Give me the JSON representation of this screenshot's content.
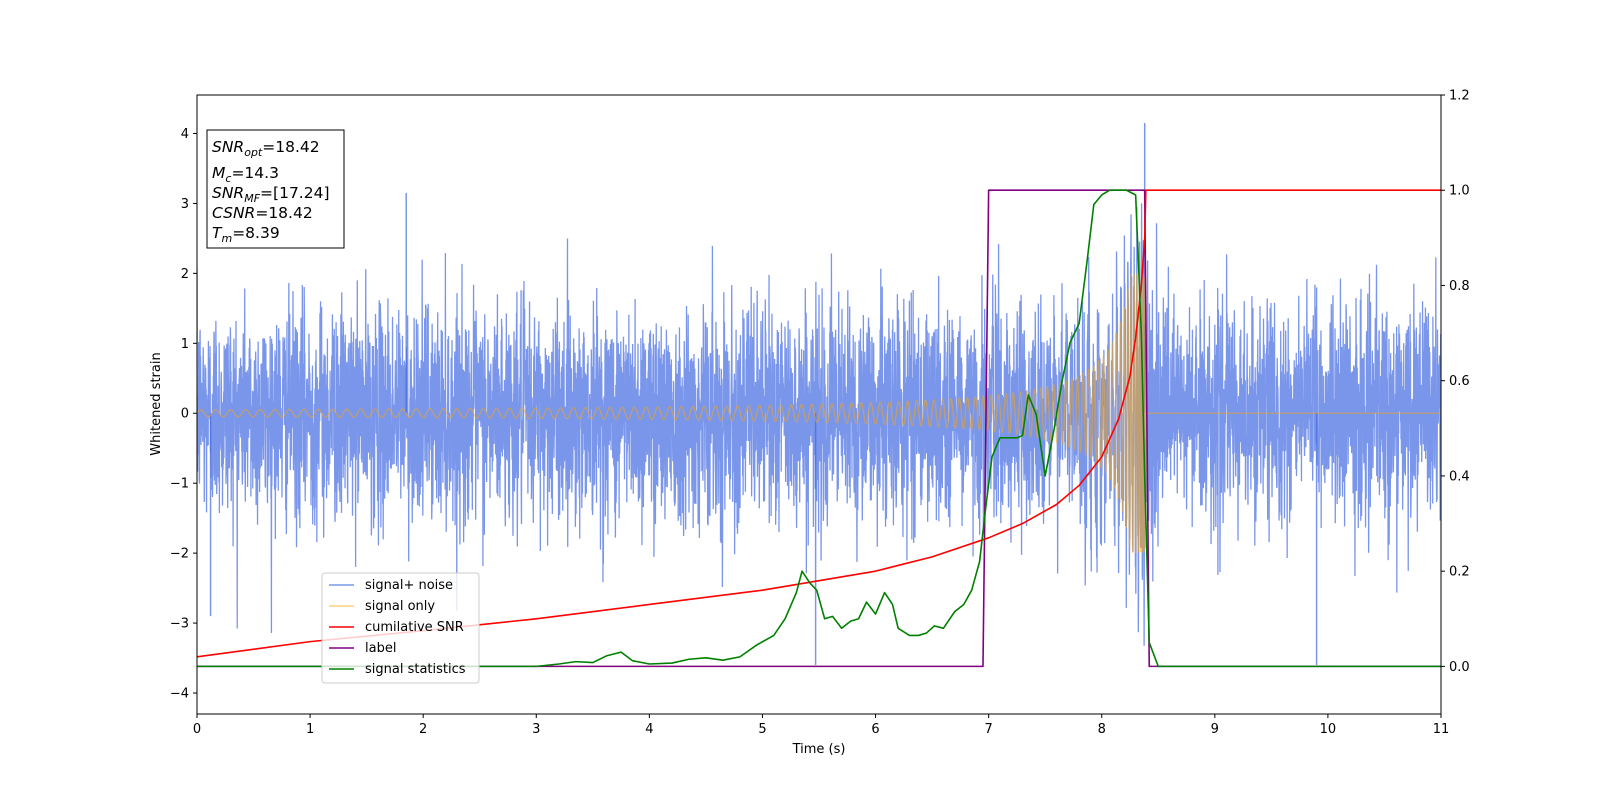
{
  "chart_data": {
    "type": "line",
    "xlabel": "Time (s)",
    "ylabel": "Whitened strain",
    "xlim": [
      0,
      11
    ],
    "ylim": [
      -4.3,
      4.55
    ],
    "y2lim": [
      -0.1,
      1.2
    ],
    "xticks": [
      "0",
      "1",
      "2",
      "3",
      "4",
      "5",
      "6",
      "7",
      "8",
      "9",
      "10",
      "11"
    ],
    "yticks": [
      "−4",
      "−3",
      "−2",
      "−1",
      "0",
      "1",
      "2",
      "3",
      "4"
    ],
    "y2ticks": [
      "0.0",
      "0.2",
      "0.4",
      "0.6",
      "0.8",
      "1.0",
      "1.2"
    ],
    "grid": false,
    "legend_position": "lower-left",
    "annotation_box": {
      "snr_opt": {
        "sym": "SNR",
        "sub": "opt",
        "value": "=18.42"
      },
      "mc": {
        "sym": "M",
        "sub": "c",
        "value": "=14.3"
      },
      "snr_mf": {
        "sym": "SNR",
        "sub": "MF",
        "value": "=[17.24]"
      },
      "csnr": {
        "sym": "CSNR",
        "value": "=18.42"
      },
      "tm": {
        "sym": "T",
        "sub": "m",
        "value": "=8.39"
      }
    },
    "series": [
      {
        "name": "signal+ noise",
        "color": "#4169e1",
        "opacity": 0.7,
        "axis": "left",
        "description_values": "whitened noise with std≈0.7, spanning about ±2.5 with spikes up to 4.15 near t=8.38",
        "spikes": [
          [
            1.85,
            3.15
          ],
          [
            8.38,
            4.15
          ],
          [
            5.47,
            -3.6
          ],
          [
            9.9,
            -3.6
          ],
          [
            0.12,
            -2.9
          ]
        ]
      },
      {
        "name": "signal only",
        "color": "#ffa500",
        "opacity": 0.5,
        "axis": "left",
        "chirp": {
          "t_merge": 8.39,
          "amp_start": 0.05,
          "amp_peak": 2.0,
          "f_start": 7.5
        }
      },
      {
        "name": "cumilative SNR",
        "color": "#ff0000",
        "axis": "right",
        "x": [
          0,
          1,
          2,
          3,
          4,
          5,
          6,
          6.5,
          7,
          7.3,
          7.6,
          7.8,
          8.0,
          8.15,
          8.25,
          8.3,
          8.35,
          8.38,
          8.39,
          11
        ],
        "y": [
          0.02,
          0.052,
          0.075,
          0.1,
          0.13,
          0.16,
          0.2,
          0.23,
          0.27,
          0.3,
          0.34,
          0.38,
          0.44,
          0.52,
          0.61,
          0.69,
          0.8,
          0.9,
          1.0,
          1.0
        ]
      },
      {
        "name": "label",
        "color": "#800080",
        "axis": "right",
        "x": [
          0,
          6.95,
          7.0,
          8.38,
          8.42,
          11
        ],
        "y": [
          0,
          0,
          1,
          1,
          0,
          0
        ]
      },
      {
        "name": "signal statistics",
        "color": "#008000",
        "axis": "right",
        "x": [
          0,
          3.0,
          3.2,
          3.35,
          3.5,
          3.62,
          3.75,
          3.85,
          4.0,
          4.2,
          4.35,
          4.5,
          4.65,
          4.8,
          4.95,
          5.1,
          5.2,
          5.3,
          5.35,
          5.42,
          5.48,
          5.55,
          5.62,
          5.7,
          5.78,
          5.85,
          5.92,
          6.0,
          6.08,
          6.15,
          6.2,
          6.3,
          6.38,
          6.45,
          6.52,
          6.6,
          6.7,
          6.78,
          6.85,
          6.92,
          6.97,
          7.03,
          7.1,
          7.18,
          7.25,
          7.3,
          7.35,
          7.42,
          7.5,
          7.58,
          7.65,
          7.72,
          7.8,
          7.87,
          7.93,
          8.0,
          8.07,
          8.15,
          8.22,
          8.3,
          8.35,
          8.38,
          8.42,
          8.5,
          11
        ],
        "y": [
          0.0,
          0.0,
          0.005,
          0.01,
          0.008,
          0.022,
          0.03,
          0.012,
          0.005,
          0.007,
          0.015,
          0.018,
          0.013,
          0.02,
          0.045,
          0.065,
          0.1,
          0.155,
          0.2,
          0.175,
          0.16,
          0.1,
          0.105,
          0.08,
          0.095,
          0.1,
          0.135,
          0.11,
          0.155,
          0.13,
          0.08,
          0.065,
          0.065,
          0.07,
          0.085,
          0.08,
          0.115,
          0.13,
          0.16,
          0.22,
          0.325,
          0.44,
          0.48,
          0.48,
          0.48,
          0.485,
          0.57,
          0.53,
          0.4,
          0.5,
          0.6,
          0.68,
          0.72,
          0.85,
          0.97,
          0.99,
          1.0,
          1.0,
          1.0,
          0.99,
          0.7,
          0.4,
          0.05,
          0.0,
          0.0
        ]
      }
    ]
  }
}
